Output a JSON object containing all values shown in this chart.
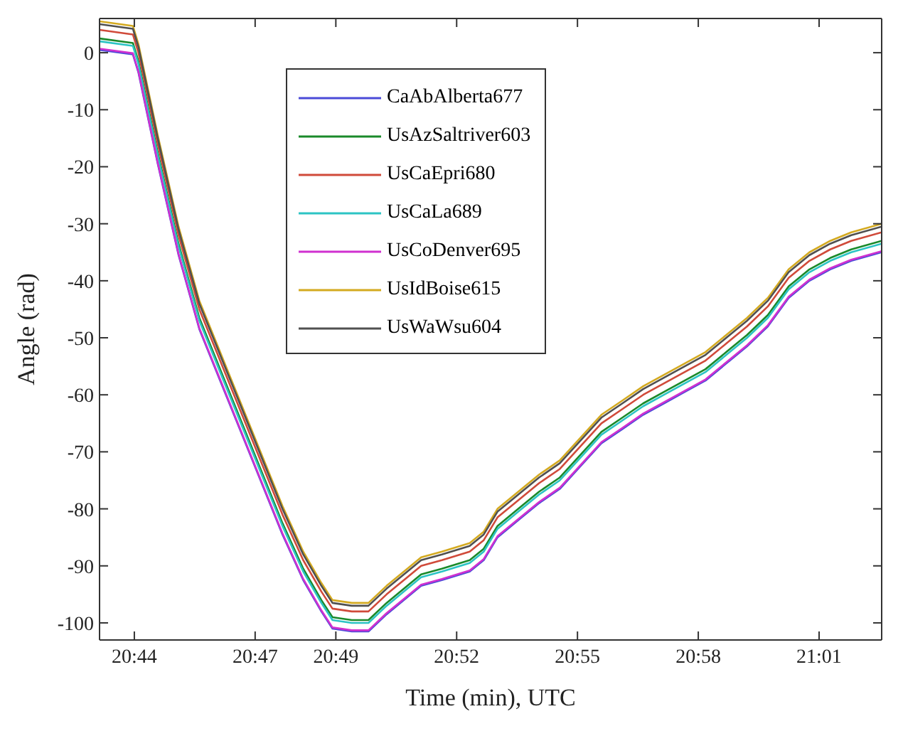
{
  "chart_data": {
    "type": "line",
    "xlabel": "Time (min), UTC",
    "ylabel": "Angle (rad)",
    "x": [
      20.7189,
      20.7327,
      20.735,
      20.743,
      20.7516,
      20.7602,
      20.7688,
      20.7774,
      20.786,
      20.7946,
      20.8032,
      20.8107,
      20.8153,
      20.8233,
      20.8302,
      20.8377,
      20.8463,
      20.852,
      20.8606,
      20.8721,
      20.8779,
      20.8836,
      20.8922,
      20.9008,
      20.9094,
      20.918,
      20.9266,
      20.9353,
      20.9439,
      20.9525,
      20.9611,
      20.9697,
      20.9783,
      20.9869,
      20.9955,
      21.0041,
      21.0127,
      21.0213,
      21.03,
      21.0426
    ],
    "xlim": [
      20.7189,
      21.0426
    ],
    "xticks": [
      {
        "value": 20.7333,
        "label": "20:44"
      },
      {
        "value": 20.7833,
        "label": "20:47"
      },
      {
        "value": 20.8167,
        "label": "20:49"
      },
      {
        "value": 20.8667,
        "label": "20:52"
      },
      {
        "value": 20.9167,
        "label": "20:55"
      },
      {
        "value": 20.9667,
        "label": "20:58"
      },
      {
        "value": 21.0167,
        "label": "21:01"
      }
    ],
    "ylim": [
      -103,
      6
    ],
    "yticks": [
      -100,
      -90,
      -80,
      -70,
      -60,
      -50,
      -40,
      -30,
      -20,
      -10,
      0
    ],
    "grid": false,
    "legend": "top left",
    "marker": "none",
    "line_style": "solid",
    "series": [
      {
        "name": "CaAbAlberta677",
        "color": "#4b4bd8",
        "values": [
          0.5,
          -0.3,
          -3.5,
          -19.5,
          -35.5,
          -48.5,
          -57.5,
          -66.5,
          -75.5,
          -84.5,
          -92.5,
          -98,
          -101,
          -101.5,
          -101.5,
          -98.5,
          -95.5,
          -93.5,
          -92.5,
          -91,
          -89,
          -85,
          -82,
          -79,
          -76.5,
          -72.5,
          -68.5,
          -66,
          -63.5,
          -61.5,
          -59.5,
          -57.5,
          -54.5,
          -51.5,
          -48,
          -43,
          -40,
          -38,
          -36.5,
          -35
        ]
      },
      {
        "name": "UsAzSaltriver603",
        "color": "#1a8a2a",
        "values": [
          2.5,
          1.7,
          -1.5,
          -17.5,
          -33.5,
          -46.5,
          -55.5,
          -64.5,
          -73.5,
          -82.5,
          -90.5,
          -96,
          -99,
          -99.5,
          -99.5,
          -96.5,
          -93.5,
          -91.5,
          -90.5,
          -89,
          -87,
          -83,
          -80,
          -77,
          -74.5,
          -70.5,
          -66.5,
          -64,
          -61.5,
          -59.5,
          -57.5,
          -55.5,
          -52.5,
          -49.5,
          -46,
          -41,
          -38,
          -36,
          -34.5,
          -33
        ]
      },
      {
        "name": "UsCaEpri680",
        "color": "#d04a3a",
        "values": [
          4,
          3.2,
          0,
          -16,
          -32,
          -45,
          -54,
          -63,
          -72,
          -81,
          -89,
          -94.5,
          -97.5,
          -98,
          -98,
          -95,
          -92,
          -90,
          -89,
          -87.5,
          -85.5,
          -81.5,
          -78.5,
          -75.5,
          -73,
          -69,
          -65,
          -62.5,
          -60,
          -58,
          -56,
          -54,
          -51,
          -48,
          -44.5,
          -39.5,
          -36.5,
          -34.5,
          -33,
          -31.5
        ]
      },
      {
        "name": "UsCaLa689",
        "color": "#2cc4c4",
        "values": [
          2,
          1.2,
          -2,
          -18,
          -34,
          -47,
          -56,
          -65,
          -74,
          -83,
          -91,
          -96.5,
          -99.5,
          -100,
          -100,
          -97,
          -94,
          -92,
          -91,
          -89.5,
          -87.5,
          -83.5,
          -80.5,
          -77.5,
          -75,
          -71,
          -67,
          -64.5,
          -62,
          -60,
          -58,
          -56,
          -53,
          -50,
          -46.5,
          -41.5,
          -38.5,
          -36.5,
          -35,
          -33.5
        ]
      },
      {
        "name": "UsCoDenver695",
        "color": "#d030d0",
        "values": [
          0.7,
          -0.1,
          -3.3,
          -19.3,
          -35.3,
          -48.3,
          -57.3,
          -66.3,
          -75.3,
          -84.3,
          -92.3,
          -97.8,
          -100.8,
          -101.3,
          -101.3,
          -98.3,
          -95.3,
          -93.3,
          -92.3,
          -90.8,
          -88.8,
          -84.8,
          -81.8,
          -78.8,
          -76.3,
          -72.3,
          -68.3,
          -65.8,
          -63.3,
          -61.3,
          -59.3,
          -57.3,
          -54.3,
          -51.3,
          -47.8,
          -42.8,
          -39.8,
          -37.8,
          -36.3,
          -34.8
        ]
      },
      {
        "name": "UsIdBoise615",
        "color": "#d4aa20",
        "values": [
          5.5,
          4.7,
          1.5,
          -14.5,
          -30.5,
          -43.5,
          -52.5,
          -61.5,
          -70.5,
          -79.5,
          -87.5,
          -93,
          -96,
          -96.5,
          -96.5,
          -93.5,
          -90.5,
          -88.5,
          -87.5,
          -86,
          -84,
          -80,
          -77,
          -74,
          -71.5,
          -67.5,
          -63.5,
          -61,
          -58.5,
          -56.5,
          -54.5,
          -52.5,
          -49.5,
          -46.5,
          -43,
          -38,
          -35,
          -33,
          -31.5,
          -30
        ]
      },
      {
        "name": "UsWaWsu604",
        "color": "#505050",
        "values": [
          5,
          4.2,
          1,
          -15,
          -31,
          -44,
          -53,
          -62,
          -71,
          -80,
          -88,
          -93.5,
          -96.5,
          -97,
          -97,
          -94,
          -91,
          -89,
          -88,
          -86.5,
          -84.5,
          -80.5,
          -77.5,
          -74.5,
          -72,
          -68,
          -64,
          -61.5,
          -59,
          -57,
          -55,
          -53,
          -50,
          -47,
          -43.5,
          -38.5,
          -35.5,
          -33.5,
          -32,
          -30.5
        ]
      }
    ]
  }
}
